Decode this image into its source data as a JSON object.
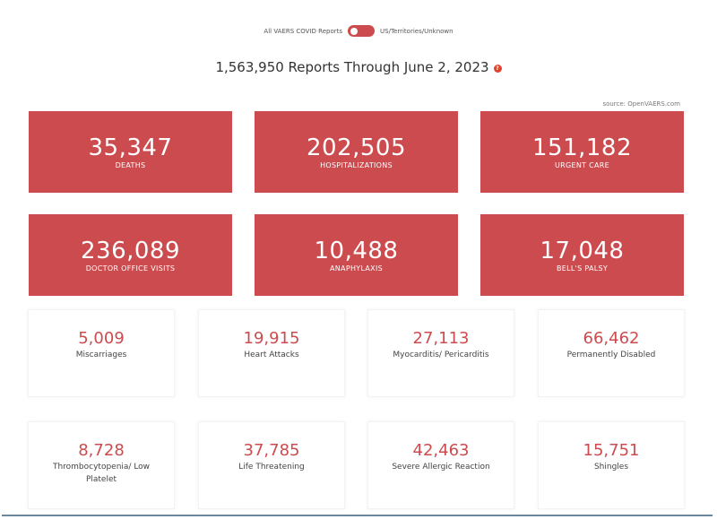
{
  "toggle": {
    "left_label": "All VAERS COVID Reports",
    "right_label": "US/Territories/Unknown",
    "state": "off"
  },
  "header": {
    "title": "1,563,950 Reports Through June 2, 2023",
    "help_icon": "?"
  },
  "source": "source: OpenVAERS.com",
  "colors": {
    "accent": "#cc4b4e",
    "help": "#e0442c"
  },
  "primary_stats": [
    {
      "value": "35,347",
      "label": "DEATHS"
    },
    {
      "value": "202,505",
      "label": "HOSPITALIZATIONS"
    },
    {
      "value": "151,182",
      "label": "URGENT CARE"
    },
    {
      "value": "236,089",
      "label": "DOCTOR OFFICE VISITS"
    },
    {
      "value": "10,488",
      "label": "ANAPHYLAXIS"
    },
    {
      "value": "17,048",
      "label": "BELL'S PALSY"
    }
  ],
  "secondary_stats": [
    {
      "value": "5,009",
      "label": "Miscarriages"
    },
    {
      "value": "19,915",
      "label": "Heart Attacks"
    },
    {
      "value": "27,113",
      "label": "Myocarditis/ Pericarditis"
    },
    {
      "value": "66,462",
      "label": "Permanently Disabled"
    },
    {
      "value": "8,728",
      "label": "Thrombocytopenia/ Low Platelet"
    },
    {
      "value": "37,785",
      "label": "Life Threatening"
    },
    {
      "value": "42,463",
      "label": "Severe Allergic Reaction"
    },
    {
      "value": "15,751",
      "label": "Shingles"
    }
  ]
}
